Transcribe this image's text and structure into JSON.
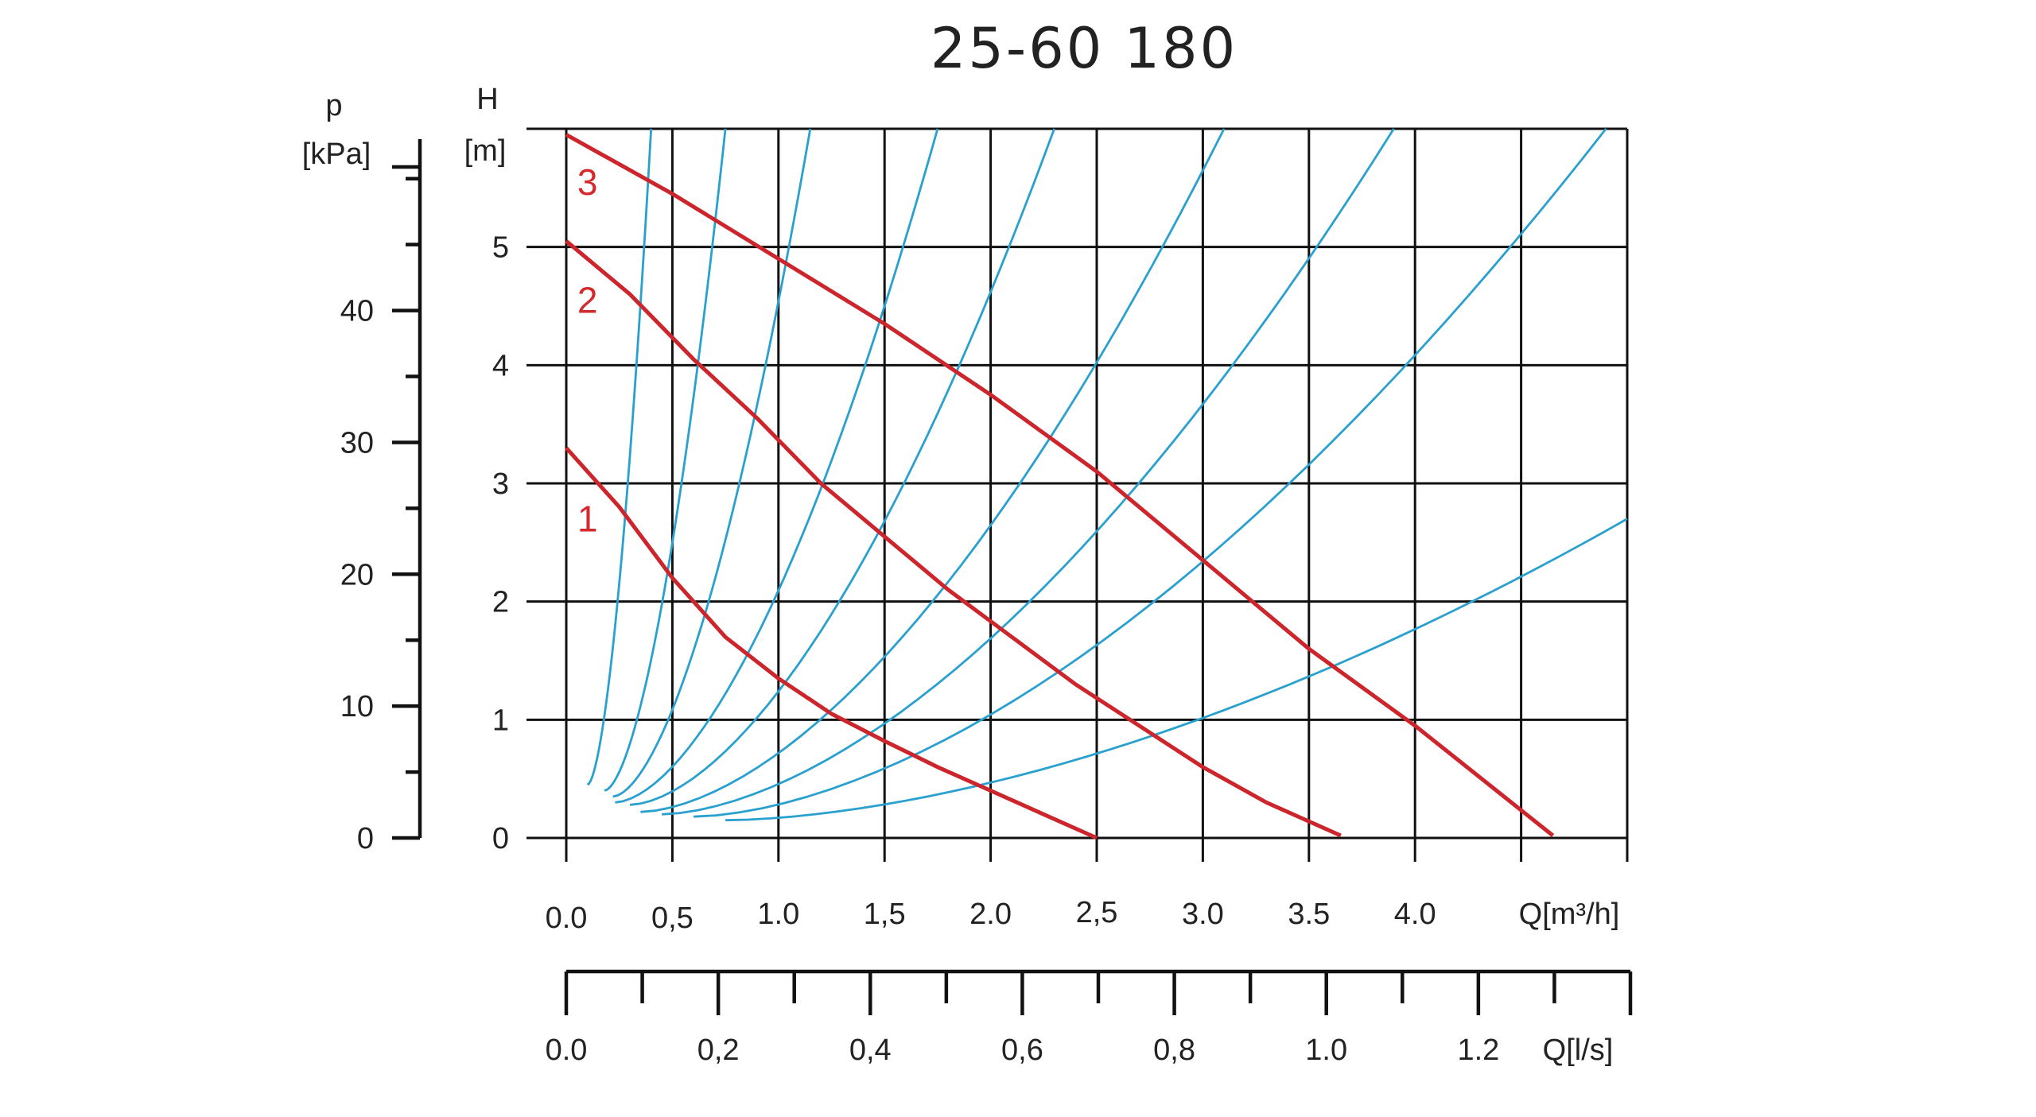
{
  "chart_data": {
    "type": "line",
    "title": "25-60 180",
    "x_axis": {
      "label": "Q[m³/h]",
      "range": [
        0,
        5.0
      ],
      "major_ticks": [
        0.0,
        0.5,
        1.0,
        1.5,
        2.0,
        2.5,
        3.0,
        3.5,
        4.0
      ],
      "tick_labels": [
        "0.0",
        "0,5",
        "1.0",
        "1,5",
        "2.0",
        "2,5",
        "3.0",
        "3.5",
        "4.0"
      ],
      "grid_lines": [
        0.0,
        0.5,
        1.0,
        1.5,
        2.0,
        2.5,
        3.0,
        3.5,
        4.0,
        4.5,
        5.0
      ]
    },
    "secondary_x_axis": {
      "label": "Q[l/s]",
      "range": [
        0,
        1.4
      ],
      "ticks": [
        0.0,
        0.1,
        0.2,
        0.3,
        0.4,
        0.5,
        0.6,
        0.7,
        0.8,
        0.9,
        1.0,
        1.1,
        1.2,
        1.3,
        1.4
      ],
      "tick_labels": [
        "0.0",
        "0,2",
        "0,4",
        "0,6",
        "0,8",
        "1.0",
        "1.2"
      ],
      "tick_label_values": [
        0.0,
        0.2,
        0.4,
        0.6,
        0.8,
        1.0,
        1.2
      ]
    },
    "y_axis": {
      "label_symbol": "H",
      "label_unit": "[m]",
      "range": [
        0,
        6
      ],
      "tick_labels": [
        "0",
        "1",
        "2",
        "3",
        "4",
        "5"
      ],
      "tick_values": [
        0,
        1,
        2,
        3,
        4,
        5
      ],
      "grid_lines": [
        0,
        1,
        2,
        3,
        4,
        5,
        6
      ]
    },
    "secondary_y_axis": {
      "label_symbol": "p",
      "label_unit": "[kPa]",
      "range": [
        0,
        53
      ],
      "tick_labels": [
        "0",
        "10",
        "20",
        "30",
        "40"
      ],
      "tick_values": [
        0,
        10,
        20,
        30,
        40
      ],
      "minor_ticks": [
        5,
        15,
        25,
        35,
        45,
        50
      ]
    },
    "grid": true,
    "series": [
      {
        "name": "1",
        "color": "#cc262c",
        "x": [
          0.0,
          0.25,
          0.5,
          0.75,
          1.0,
          1.25,
          1.5,
          1.75,
          2.0,
          2.25,
          2.5
        ],
        "y": [
          3.3,
          2.8,
          2.2,
          1.7,
          1.35,
          1.05,
          0.82,
          0.6,
          0.4,
          0.2,
          0.0
        ]
      },
      {
        "name": "2",
        "color": "#cc262c",
        "x": [
          0.0,
          0.3,
          0.6,
          0.9,
          1.2,
          1.5,
          1.8,
          2.1,
          2.4,
          2.7,
          3.0,
          3.3,
          3.65
        ],
        "y": [
          5.05,
          4.6,
          4.05,
          3.55,
          3.0,
          2.55,
          2.1,
          1.7,
          1.3,
          0.95,
          0.6,
          0.3,
          0.02
        ]
      },
      {
        "name": "3",
        "color": "#cc262c",
        "x": [
          0.0,
          0.5,
          1.0,
          1.5,
          2.0,
          2.5,
          3.0,
          3.5,
          4.0,
          4.65
        ],
        "y": [
          5.95,
          5.45,
          4.9,
          4.35,
          3.75,
          3.1,
          2.35,
          1.6,
          0.95,
          0.02
        ]
      }
    ],
    "system_curves": {
      "color": "#2aa0cf",
      "start_flows": [
        0.1,
        0.18,
        0.22,
        0.23,
        0.3,
        0.35,
        0.45,
        0.6,
        0.75
      ],
      "start_heads": [
        0.45,
        0.4,
        0.35,
        0.3,
        0.28,
        0.22,
        0.2,
        0.18,
        0.15
      ],
      "end_flows": [
        0.4,
        0.75,
        1.15,
        1.75,
        2.3,
        3.1,
        3.9,
        4.9,
        5.0
      ],
      "end_heads": [
        6.0,
        6.0,
        6.0,
        6.0,
        6.0,
        6.0,
        6.0,
        6.0,
        2.7
      ]
    }
  }
}
